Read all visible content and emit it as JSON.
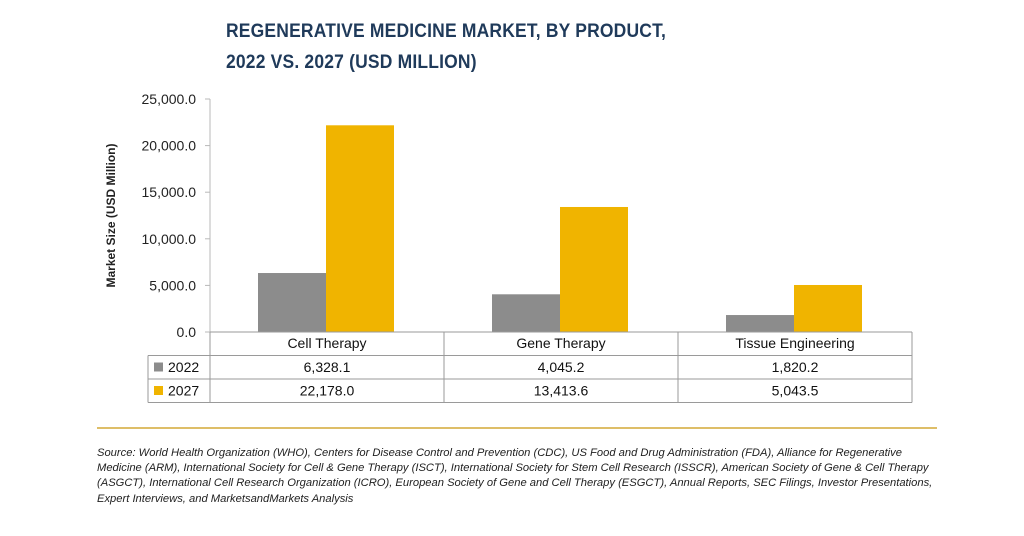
{
  "chart_data": {
    "type": "bar",
    "title_lines": [
      "REGENERATIVE MEDICINE MARKET, BY PRODUCT,",
      "2022 VS. 2027 (USD MILLION)"
    ],
    "ylabel": "Market Size (USD Million)",
    "ylim": [
      0,
      25000
    ],
    "yticks": [
      0,
      5000,
      10000,
      15000,
      20000,
      25000
    ],
    "ytick_labels": [
      "0.0",
      "5,000.0",
      "10,000.0",
      "15,000.0",
      "20,000.0",
      "25,000.0"
    ],
    "categories": [
      "Cell Therapy",
      "Gene Therapy",
      "Tissue Engineering"
    ],
    "series": [
      {
        "name": "2022",
        "color": "#8c8c8c",
        "values": [
          6328.1,
          4045.2,
          1820.2
        ],
        "value_labels": [
          "6,328.1",
          "4,045.2",
          "1,820.2"
        ]
      },
      {
        "name": "2027",
        "color": "#f0b400",
        "values": [
          22178.0,
          13413.6,
          5043.5
        ],
        "value_labels": [
          "22,178.0",
          "13,413.6",
          "5,043.5"
        ]
      }
    ],
    "grid": false,
    "legend": "data-table-left"
  },
  "source_text": "Source: World Health Organization (WHO), Centers for Disease Control and Prevention (CDC), US Food and Drug Administration (FDA), Alliance for Regenerative Medicine (ARM), International Society for Cell & Gene Therapy (ISCT), International Society for Stem Cell Research (ISSCR), American Society of Gene & Cell Therapy (ASGCT), International Cell Research Organization (ICRO), European Society of Gene and Cell Therapy (ESGCT), Annual Reports, SEC Filings, Investor Presentations, Expert Interviews, and MarketsandMarkets Analysis",
  "colors": {
    "title": "#1f3a5a",
    "divider": "#d4a937"
  }
}
